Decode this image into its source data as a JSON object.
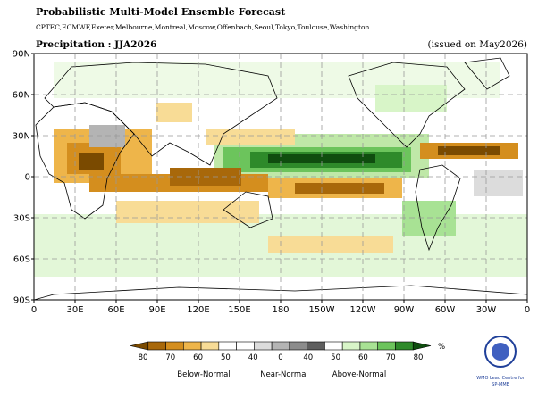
{
  "header": {
    "title": "Probabilistic Multi-Model Ensemble Forecast",
    "models": "CPTEC,ECMWF,Exeter,Melbourne,Montreal,Moscow,Offenbach,Seoul,Tokyo,Toulouse,Washington",
    "variable": "Precipitation : JJA2026",
    "issued": "(issued on May2026)"
  },
  "map": {
    "lat_labels": [
      "90N",
      "60N",
      "30N",
      "0",
      "30S",
      "60S",
      "90S"
    ],
    "lon_labels": [
      "0",
      "30E",
      "60E",
      "90E",
      "120E",
      "150E",
      "180",
      "150W",
      "120W",
      "90W",
      "60W",
      "30W",
      "0"
    ]
  },
  "legend": {
    "colors": [
      "#7a4a00",
      "#a8680a",
      "#d48e1e",
      "#eeb54a",
      "#f8dc96",
      "#ffffff",
      "#ffffff",
      "#dcdcdc",
      "#b4b4b4",
      "#8c8c8c",
      "#5e5e5e",
      "#ffffff",
      "#d8f5c8",
      "#a8e294",
      "#6cc45c",
      "#2e8a2a",
      "#0f4d0f"
    ],
    "ticks": [
      "80",
      "70",
      "60",
      "50",
      "40",
      "0",
      "40",
      "50",
      "60",
      "70",
      "80"
    ],
    "unit": "%",
    "groups": [
      "Below-Normal",
      "Near-Normal",
      "Above-Normal"
    ]
  },
  "logo": {
    "line1": "WMO Lead Centre for",
    "line2": "SP-MME"
  }
}
